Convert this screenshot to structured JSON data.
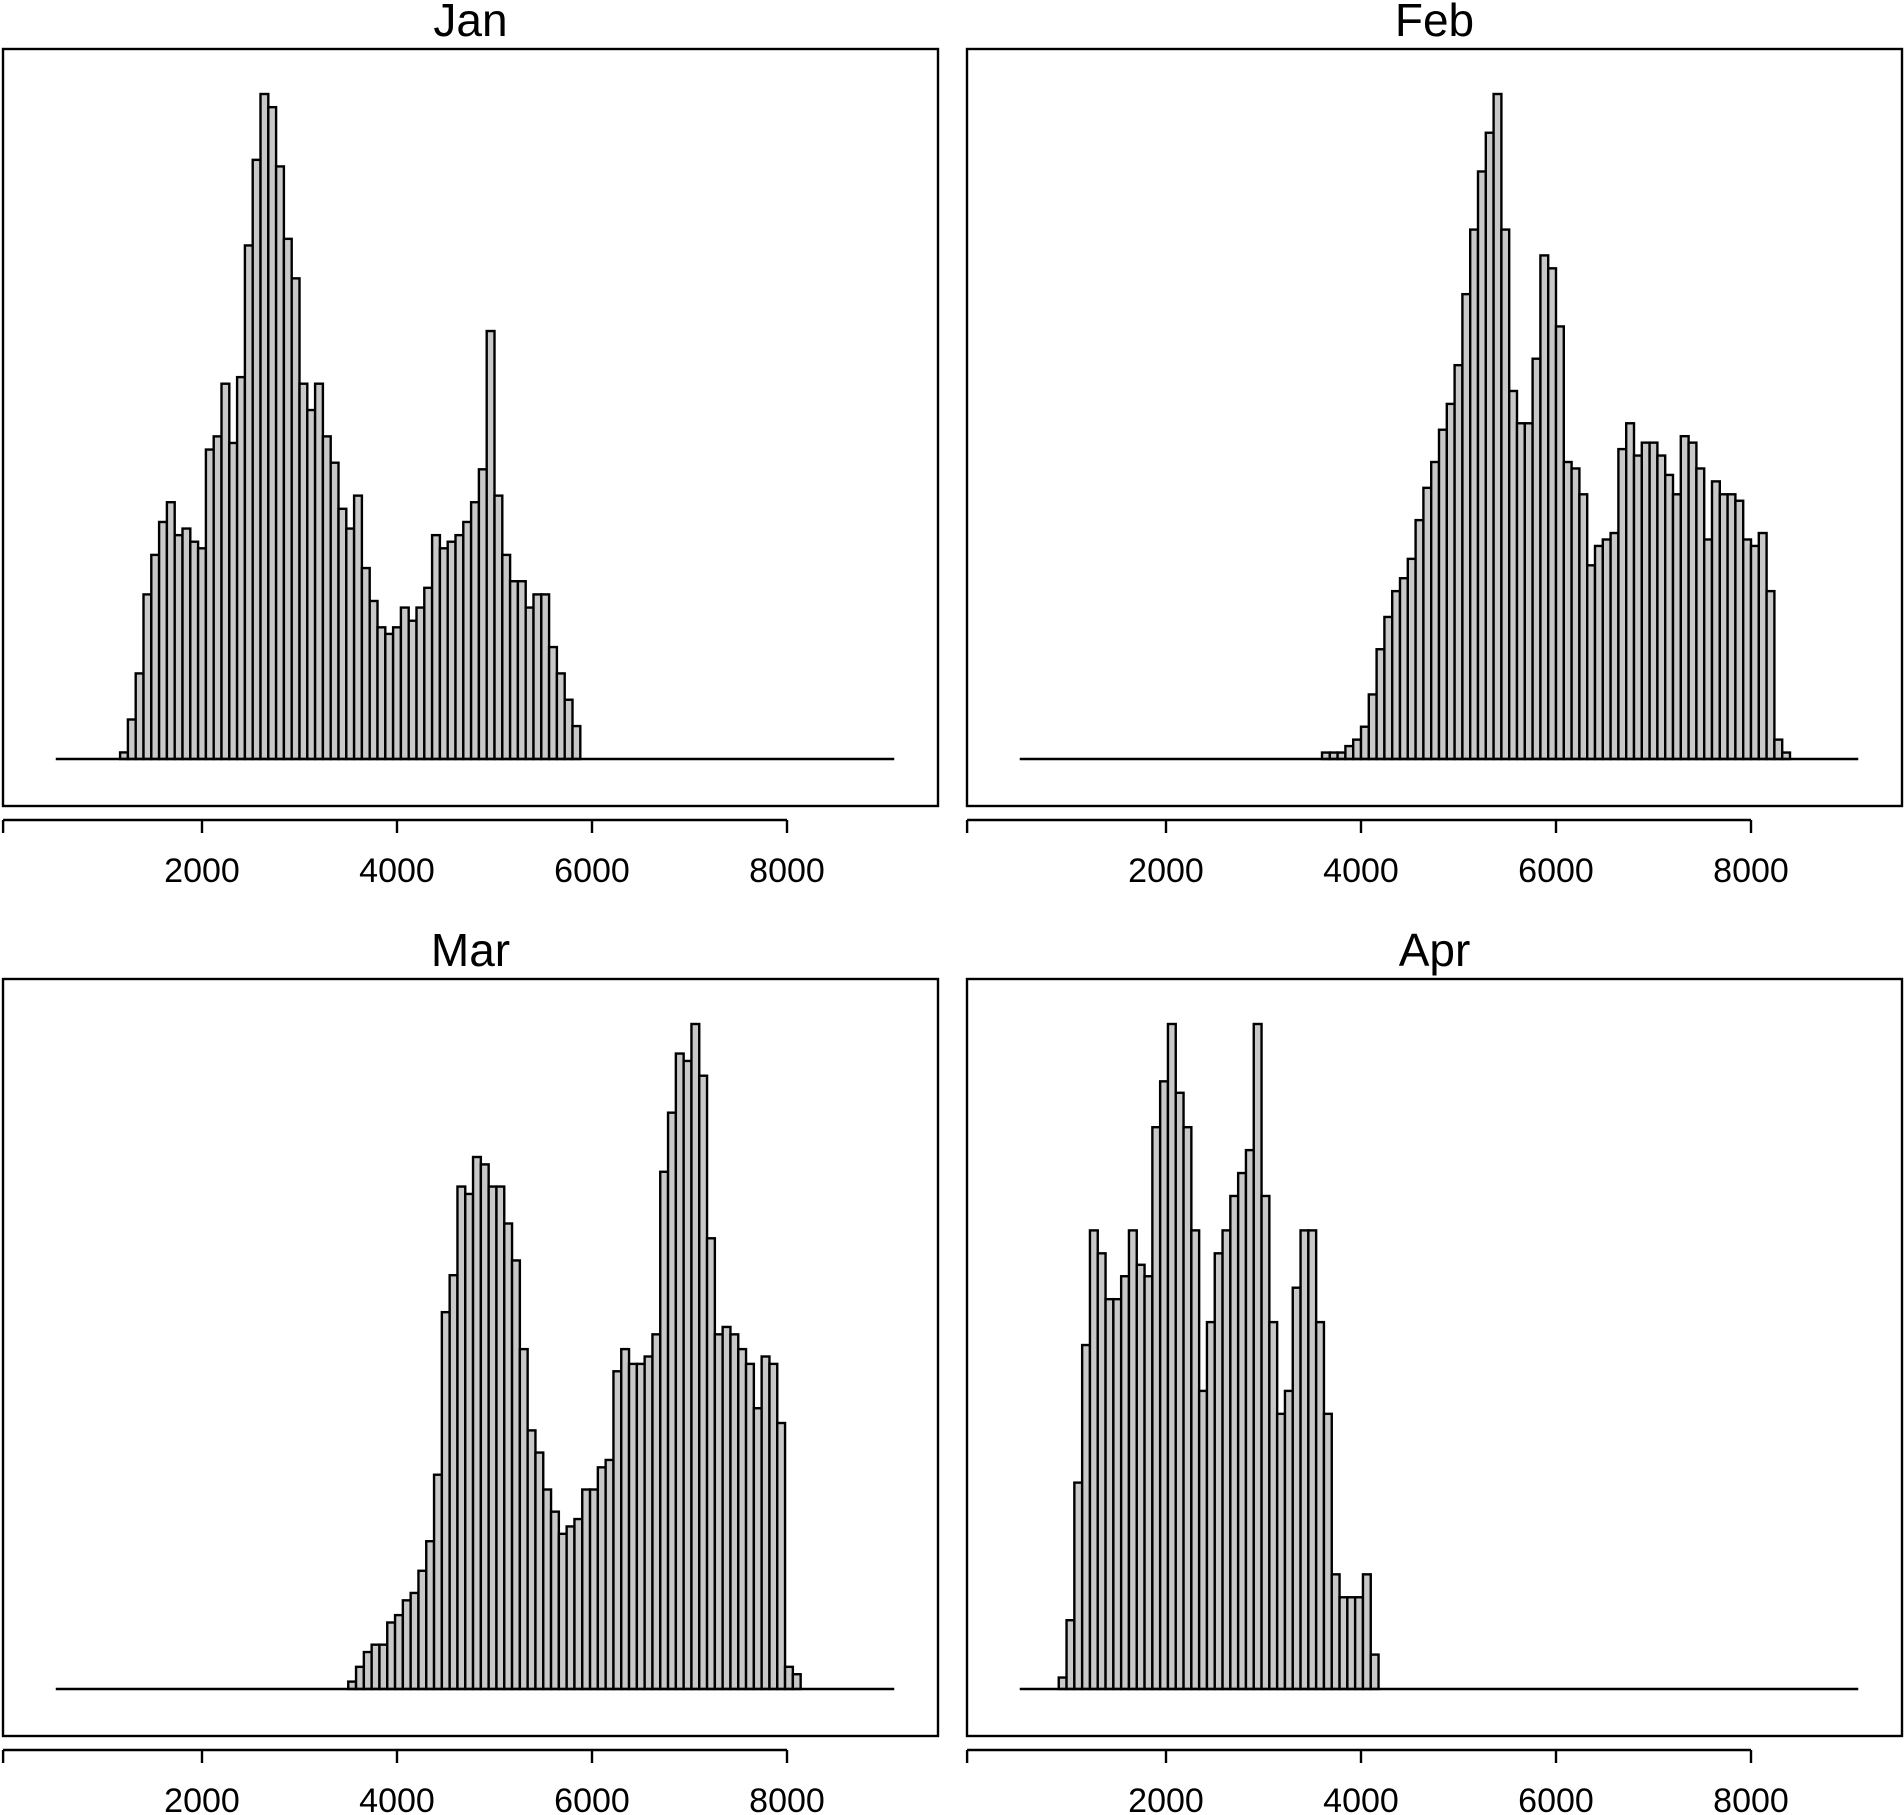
{
  "chart_data": [
    {
      "type": "bar",
      "title": "Jan",
      "xticks": [
        2000,
        4000,
        6000,
        8000
      ],
      "bin_width": 80,
      "bin_start": 1160,
      "baseline_range": [
        500,
        9100
      ],
      "values": [
        1,
        6,
        13,
        25,
        31,
        36,
        39,
        34,
        35,
        33,
        32,
        47,
        49,
        57,
        48,
        58,
        78,
        91,
        101,
        99,
        90,
        79,
        73,
        57,
        53,
        57,
        49,
        45,
        38,
        35,
        40,
        29,
        24,
        20,
        19,
        20,
        23,
        21,
        23,
        26,
        34,
        32,
        33,
        34,
        36,
        39,
        44,
        65,
        40,
        31,
        27,
        27,
        23,
        25,
        25,
        17,
        13,
        9,
        5
      ]
    },
    {
      "type": "bar",
      "title": "Feb",
      "xticks": [
        2000,
        4000,
        6000,
        8000
      ],
      "bin_width": 80,
      "bin_start": 3600,
      "baseline_range": [
        500,
        9100
      ],
      "values": [
        1,
        1,
        1,
        2,
        3,
        5,
        10,
        17,
        22,
        26,
        28,
        31,
        37,
        42,
        46,
        51,
        55,
        61,
        72,
        82,
        91,
        97,
        103,
        82,
        57,
        52,
        52,
        62,
        78,
        76,
        67,
        46,
        45,
        41,
        30,
        33,
        34,
        35,
        48,
        52,
        47,
        49,
        49,
        47,
        44,
        41,
        50,
        49,
        45,
        34,
        43,
        41,
        41,
        40,
        34,
        33,
        35,
        26,
        3,
        1
      ]
    },
    {
      "type": "bar",
      "title": "Mar",
      "xticks": [
        2000,
        4000,
        6000,
        8000
      ],
      "bin_width": 80,
      "bin_start": 3500,
      "baseline_range": [
        500,
        9100
      ],
      "values": [
        1,
        3,
        5,
        6,
        6,
        9,
        10,
        12,
        13,
        16,
        20,
        29,
        51,
        56,
        68,
        67,
        72,
        71,
        68,
        68,
        63,
        58,
        46,
        35,
        32,
        27,
        24,
        21,
        22,
        23,
        27,
        27,
        30,
        31,
        43,
        46,
        44,
        44,
        45,
        48,
        70,
        78,
        86,
        85,
        90,
        83,
        61,
        48,
        49,
        48,
        46,
        44,
        38,
        45,
        44,
        36,
        3,
        2
      ]
    },
    {
      "type": "bar",
      "title": "Apr",
      "xticks": [
        2000,
        4000,
        6000,
        8000
      ],
      "bin_width": 80,
      "bin_start": 900,
      "baseline_range": [
        500,
        9100
      ],
      "values": [
        1,
        6,
        18,
        30,
        40,
        38,
        34,
        34,
        36,
        40,
        37,
        36,
        49,
        53,
        58,
        52,
        49,
        40,
        26,
        32,
        38,
        40,
        43,
        45,
        47,
        58,
        43,
        32,
        24,
        26,
        35,
        40,
        40,
        32,
        24,
        10,
        8,
        8,
        8,
        10,
        3
      ]
    }
  ]
}
